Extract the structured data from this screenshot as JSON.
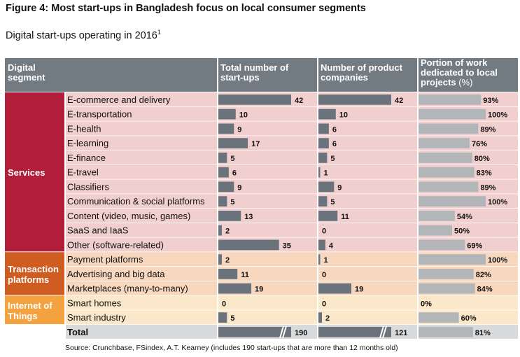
{
  "figure": {
    "title": "Figure 4: Most start-ups in Bangladesh focus on local consumer segments",
    "subtitle": "Digital start-ups operating in 2016",
    "subtitle_note": "1",
    "source": "Source: Crunchbase, FSindex, A.T. Kearney (includes 190 start-ups that are more than 12 months old)"
  },
  "chart_data": {
    "type": "table",
    "columns": [
      "Digital segment",
      "Total number of start-ups",
      "Number of product companies",
      "Portion of work dedicated to local projects (%)"
    ],
    "groups": [
      {
        "name": "Services",
        "color": "#b01e3a",
        "row_bg": "#f2cfcf",
        "rows": [
          {
            "segment": "E-commerce and delivery",
            "total": 42,
            "product": 42,
            "local_pct": 93
          },
          {
            "segment": "E-transportation",
            "total": 10,
            "product": 10,
            "local_pct": 100
          },
          {
            "segment": "E-health",
            "total": 9,
            "product": 6,
            "local_pct": 89
          },
          {
            "segment": "E-learning",
            "total": 17,
            "product": 6,
            "local_pct": 76
          },
          {
            "segment": "E-finance",
            "total": 5,
            "product": 5,
            "local_pct": 80
          },
          {
            "segment": "E-travel",
            "total": 6,
            "product": 1,
            "local_pct": 83
          },
          {
            "segment": "Classifiers",
            "total": 9,
            "product": 9,
            "local_pct": 89
          },
          {
            "segment": "Communication & social platforms",
            "total": 5,
            "product": 5,
            "local_pct": 100
          },
          {
            "segment": "Content (video, music, games)",
            "total": 13,
            "product": 11,
            "local_pct": 54
          },
          {
            "segment": "SaaS and IaaS",
            "total": 2,
            "product": 0,
            "local_pct": 50
          },
          {
            "segment": "Other (software-related)",
            "total": 35,
            "product": 4,
            "local_pct": 69
          }
        ]
      },
      {
        "name": "Transaction platforms",
        "color": "#cf5c20",
        "row_bg": "#f7d7bd",
        "rows": [
          {
            "segment": "Payment platforms",
            "total": 2,
            "product": 1,
            "local_pct": 100
          },
          {
            "segment": "Advertising and big data",
            "total": 11,
            "product": 0,
            "local_pct": 82
          },
          {
            "segment": "Marketplaces (many-to-many)",
            "total": 19,
            "product": 19,
            "local_pct": 84
          }
        ]
      },
      {
        "name": "Internet of Things",
        "color": "#f3a23f",
        "row_bg": "#fbe8cb",
        "rows": [
          {
            "segment": "Smart homes",
            "total": 0,
            "product": 0,
            "local_pct": 0
          },
          {
            "segment": "Smart industry",
            "total": 5,
            "product": 2,
            "local_pct": 60
          }
        ]
      }
    ],
    "total": {
      "segment": "Total",
      "total": 190,
      "product": 121,
      "local_pct": 81
    },
    "colors": {
      "header": "#737b82",
      "count_bar": "#6a737b",
      "pct_bar": "#b3b6b9",
      "total_row": "#d9dadb"
    }
  }
}
